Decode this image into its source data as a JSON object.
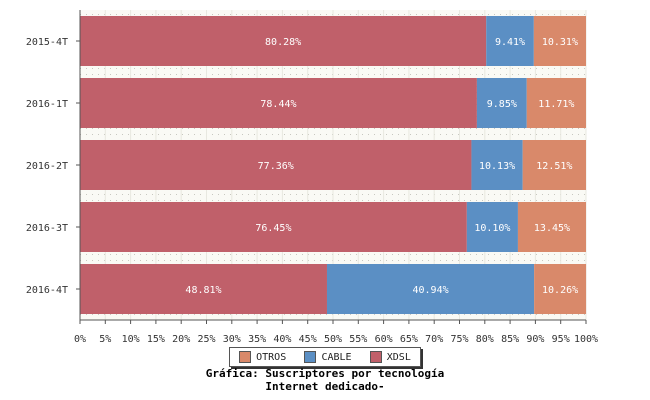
{
  "chart_data": {
    "type": "bar",
    "orientation": "horizontal",
    "stacked": true,
    "categories": [
      "2015-4T",
      "2016-1T",
      "2016-2T",
      "2016-3T",
      "2016-4T"
    ],
    "series": [
      {
        "name": "XDSL",
        "color": "#c0606a",
        "values": [
          80.28,
          78.44,
          77.36,
          76.45,
          48.81
        ],
        "labels": [
          "80.28%",
          "78.44%",
          "77.36%",
          "76.45%",
          "48.81%"
        ]
      },
      {
        "name": "CABLE",
        "color": "#5b8fc4",
        "values": [
          9.41,
          9.85,
          10.13,
          10.1,
          40.94
        ],
        "labels": [
          "9.41%",
          "9.85%",
          "10.13%",
          "10.10%",
          "40.94%"
        ]
      },
      {
        "name": "OTROS",
        "color": "#d9896a",
        "values": [
          10.31,
          11.71,
          12.51,
          13.45,
          10.26
        ],
        "labels": [
          "10.31%",
          "11.71%",
          "12.51%",
          "13.45%",
          "10.26%"
        ]
      }
    ],
    "xlim": [
      0,
      100
    ],
    "xticks": [
      "0%",
      "5%",
      "10%",
      "15%",
      "20%",
      "25%",
      "30%",
      "35%",
      "40%",
      "45%",
      "50%",
      "55%",
      "60%",
      "65%",
      "70%",
      "75%",
      "80%",
      "85%",
      "90%",
      "95%",
      "100%"
    ],
    "legend": {
      "placement": "bottom",
      "order": [
        "OTROS",
        "CABLE",
        "XDSL"
      ]
    },
    "title_lines": [
      "Gráfica: Suscriptores por tecnología",
      "Internet dedicado-"
    ],
    "grid": true
  }
}
